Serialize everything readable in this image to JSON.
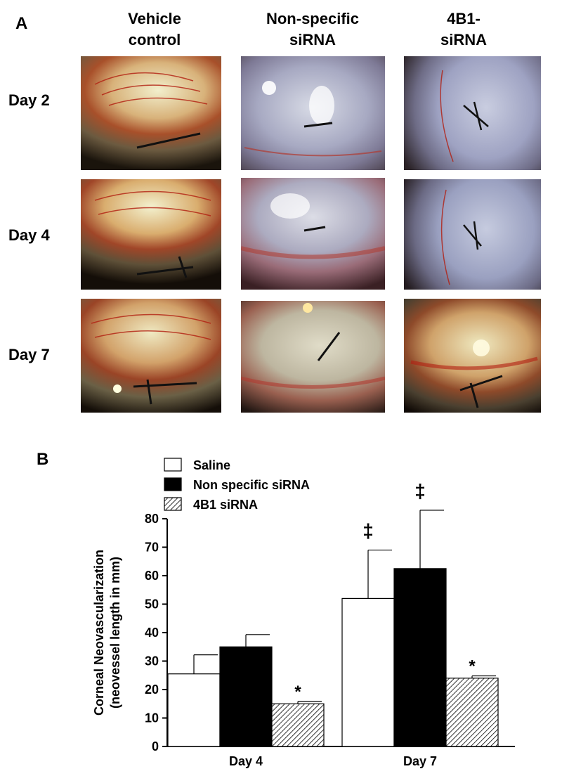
{
  "panel_a": {
    "label": "A",
    "columns": [
      {
        "line1": "Vehicle",
        "line2": "control"
      },
      {
        "line1": "Non-specific",
        "line2": "siRNA"
      },
      {
        "line1": "4B1-",
        "line2": "siRNA"
      }
    ],
    "rows": [
      "Day 2",
      "Day 4",
      "Day 7"
    ]
  },
  "panel_b": {
    "label": "B"
  },
  "chart_data": {
    "type": "bar",
    "categories": [
      "Day 4",
      "Day 7"
    ],
    "series": [
      {
        "name": "Saline",
        "fill": "#ffffff",
        "values": [
          25.5,
          52
        ],
        "errors": [
          6.7,
          17
        ],
        "markers": [
          "",
          "‡"
        ]
      },
      {
        "name": "Non specific siRNA",
        "fill": "#000000",
        "values": [
          35,
          62.5
        ],
        "errors": [
          4.3,
          20.5
        ],
        "markers": [
          "",
          "‡"
        ]
      },
      {
        "name": "4B1 siRNA",
        "fill": "hatched",
        "values": [
          15,
          24
        ],
        "errors": [
          0.8,
          0.8
        ],
        "markers": [
          "*",
          "*"
        ]
      }
    ],
    "ylabel": [
      "Corneal Neovascularization",
      "(neovessel length in mm)"
    ],
    "ylim": [
      0,
      80
    ],
    "yticks": [
      0,
      10,
      20,
      30,
      40,
      50,
      60,
      70,
      80
    ],
    "legend_position": "top-left",
    "grid": false
  }
}
